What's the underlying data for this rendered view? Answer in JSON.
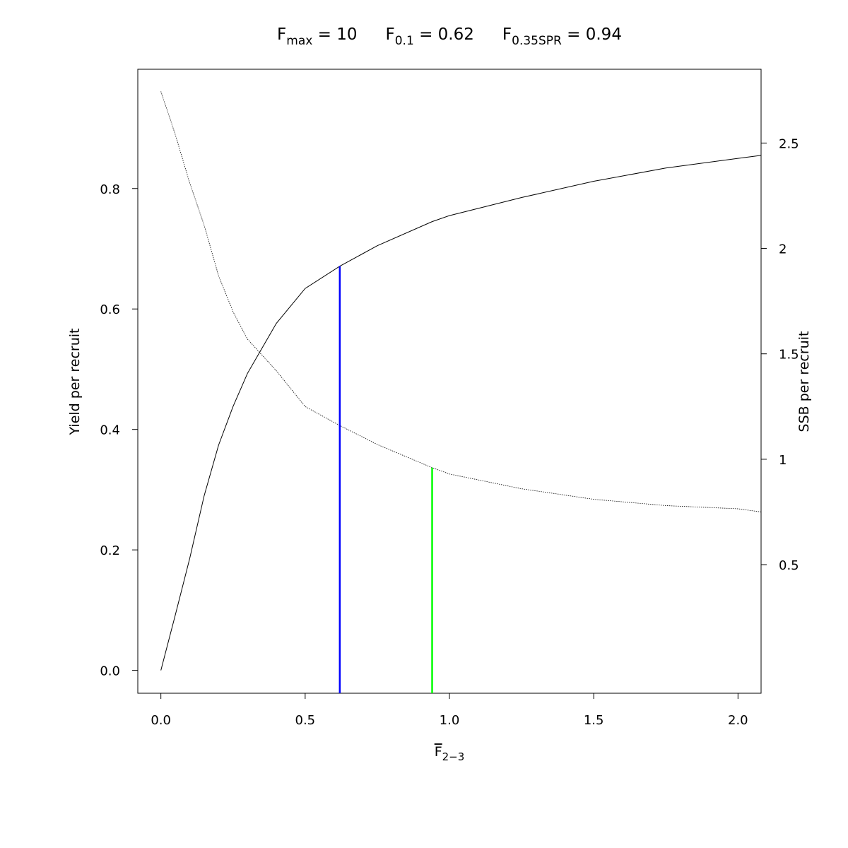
{
  "chart_data": {
    "type": "line",
    "title_parts": [
      {
        "base": "F",
        "sub": "max",
        "text": " = 10"
      },
      {
        "base": "F",
        "sub": "0.1",
        "text": " = 0.62"
      },
      {
        "base": "F",
        "sub": "0.35SPR",
        "text": " = 0.94"
      }
    ],
    "x_label": {
      "base": "F",
      "sub": "2−3",
      "overline": true
    },
    "y_label": "Yield per recruit",
    "y2_label": "SSB per recruit",
    "x": [
      0,
      0.05,
      0.1,
      0.15,
      0.2,
      0.25,
      0.3,
      0.4,
      0.5,
      0.62,
      0.75,
      0.94,
      1.0,
      1.25,
      1.5,
      1.75,
      2.0,
      2.08
    ],
    "series": [
      {
        "color": "#000000",
        "dash": "solid",
        "axis": "y",
        "values": [
          0,
          0.092,
          0.186,
          0.29,
          0.374,
          0.438,
          0.493,
          0.576,
          0.634,
          0.671,
          0.705,
          0.745,
          0.755,
          0.785,
          0.812,
          0.834,
          0.85,
          0.855
        ]
      },
      {
        "color": "#000000",
        "dash": "dotted",
        "axis": "y2",
        "values": [
          2.745,
          2.54,
          2.31,
          2.11,
          1.87,
          1.7,
          1.57,
          1.42,
          1.25,
          1.16,
          1.07,
          0.96,
          0.93,
          0.86,
          0.81,
          0.78,
          0.765,
          0.75
        ]
      }
    ],
    "reference_lines": [
      {
        "x": 0.62,
        "top": 0.671,
        "axis": "y",
        "color": "#0000ff"
      },
      {
        "x": 0.94,
        "top": 0.96,
        "axis": "y2",
        "color": "#00ff00"
      }
    ],
    "xlim": [
      -0.08,
      2.08
    ],
    "ylim": [
      -0.038,
      0.998
    ],
    "y2lim": [
      -0.11,
      2.85
    ],
    "xticks": [
      {
        "value": 0,
        "label": "0.0"
      },
      0.5,
      {
        "value": 1,
        "label": "1.0"
      },
      1.5,
      {
        "value": 2,
        "label": "2.0"
      }
    ],
    "yticks": [
      {
        "value": 0,
        "label": "0.0"
      },
      0.2,
      0.4,
      0.6,
      0.8
    ],
    "y2ticks": [
      0.5,
      1,
      1.5,
      2,
      2.5
    ]
  }
}
